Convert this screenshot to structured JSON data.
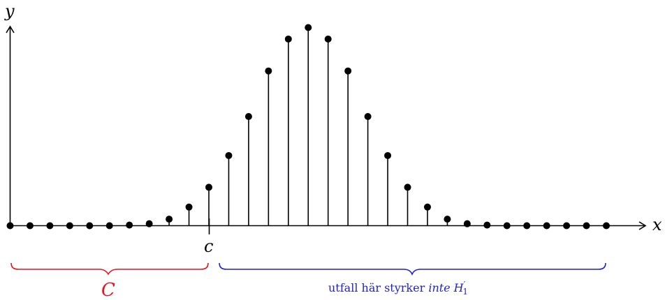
{
  "axes": {
    "x_label": "x",
    "y_label": "y",
    "c_label": "c"
  },
  "braces": {
    "left_label": "C",
    "left_color": "#e8141b",
    "right_label_prefix": "utfall här styrker ",
    "right_label_emph": "inte",
    "right_label_h": "H",
    "right_label_sup": "′",
    "right_label_sub": "1",
    "right_color": "#1f1fd6"
  },
  "chart_data": {
    "type": "stem",
    "x": [
      0,
      1,
      2,
      3,
      4,
      5,
      6,
      7,
      8,
      9,
      10,
      11,
      12,
      13,
      14,
      15,
      16,
      17,
      18,
      19,
      20,
      21,
      22,
      23,
      24,
      25,
      26,
      27,
      28,
      29,
      30
    ],
    "values": [
      0,
      0,
      0,
      0,
      0,
      0,
      0.003,
      0.01,
      0.033,
      0.094,
      0.194,
      0.354,
      0.551,
      0.781,
      0.942,
      1.0,
      0.942,
      0.781,
      0.551,
      0.354,
      0.194,
      0.094,
      0.033,
      0.01,
      0.003,
      0,
      0,
      0,
      0,
      0,
      0
    ],
    "critical_value_label": "c",
    "critical_value_x": 10
  }
}
